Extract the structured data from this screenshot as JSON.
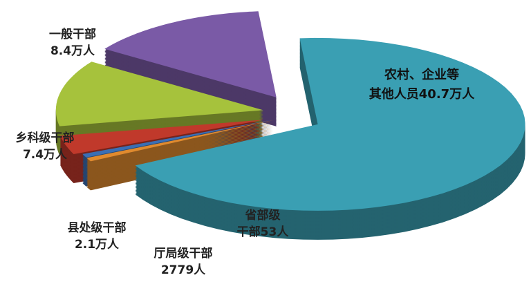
{
  "chart_data": {
    "type": "pie",
    "style": "3d-exploded",
    "unit_note": "values in 万人 (10,000 persons)",
    "slices": [
      {
        "label_line1": "农村、企业等",
        "label_line2": "其他人员40.7万人",
        "value": 40.7,
        "color": "#3a9fb3"
      },
      {
        "label_line1": "省部级",
        "label_line2": "干部53人",
        "value": 0.0053,
        "color": "#e08a2e"
      },
      {
        "label_line1": "厅局级干部",
        "label_line2": "2779人",
        "value": 0.2779,
        "color": "#3a6fb5"
      },
      {
        "label_line1": "县处级干部",
        "label_line2": "2.1万人",
        "value": 2.1,
        "color": "#c0392b"
      },
      {
        "label_line1": "乡科级干部",
        "label_line2": "7.4万人",
        "value": 7.4,
        "color": "#a6c23c"
      },
      {
        "label_line1": "一般干部",
        "label_line2": "8.4万人",
        "value": 8.4,
        "color": "#7a5aa6"
      }
    ]
  }
}
